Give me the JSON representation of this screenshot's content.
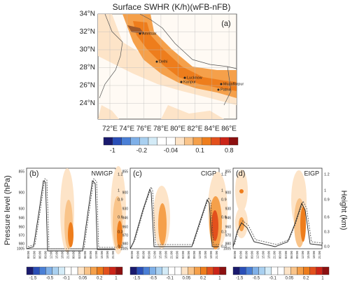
{
  "map": {
    "title": "Surface SWHR (K/h)(wFB-nFB)",
    "panel_label": "(a)",
    "lat_labels": [
      "34°N",
      "32°N",
      "30°N",
      "28°N",
      "26°N",
      "24°N"
    ],
    "lon_labels": [
      "72°E",
      "74°E",
      "76°E",
      "78°E",
      "80°E",
      "82°E",
      "84°E",
      "86°E"
    ],
    "cities": [
      "Amritsar",
      "Delhi",
      "Lucknow",
      "Kanpur",
      "Muzaffarpur",
      "Patna"
    ],
    "colorbar": {
      "colors": [
        "#1a1a6e",
        "#2a4fb8",
        "#4a7fd6",
        "#7fb0e8",
        "#a9d0f0",
        "#d4ebf7",
        "#ffffff",
        "#ffffff",
        "#fde4c8",
        "#f9c48a",
        "#f5a04a",
        "#ee7d1c",
        "#e3501c",
        "#cc2418",
        "#8c1010"
      ],
      "labels": [
        "-1",
        "-0.2",
        "-0.04",
        "0.1",
        "0.8"
      ]
    }
  },
  "profiles": {
    "y_label": "Pressure level (hPa)",
    "y2_label": "Height (km)",
    "pressure_labels": [
      "855",
      "900",
      "930",
      "946",
      "960",
      "970",
      "980",
      "1005"
    ],
    "height_labels": [
      "1.2",
      "1",
      "0.9",
      "0.6",
      "0.3",
      "0.0"
    ],
    "time_labels": [
      "00:00",
      "03:00",
      "06:00",
      "09:00",
      "12:00",
      "15:00",
      "18:00",
      "21:00",
      "00:00",
      "03:00",
      "06:00",
      "09:00",
      "12:00",
      "15:00",
      "18:00",
      "21:00"
    ],
    "panels": [
      {
        "label": "(b)",
        "name": "NWIGP"
      },
      {
        "label": "(c)",
        "name": "CIGP"
      },
      {
        "label": "(d)",
        "name": "EIGP"
      }
    ],
    "colorbar": {
      "colors": [
        "#1a1a6e",
        "#2a4fb8",
        "#4a7fd6",
        "#7fb0e8",
        "#a9d0f0",
        "#d4ebf7",
        "#ffffff",
        "#ffffff",
        "#fde4c8",
        "#f9c48a",
        "#f5a04a",
        "#ee7d1c",
        "#e3501c",
        "#cc2418",
        "#8c1010"
      ],
      "labels": [
        "-1.5",
        "-0.5",
        "-0.1",
        "0.05",
        "0.2",
        "1"
      ]
    }
  }
}
